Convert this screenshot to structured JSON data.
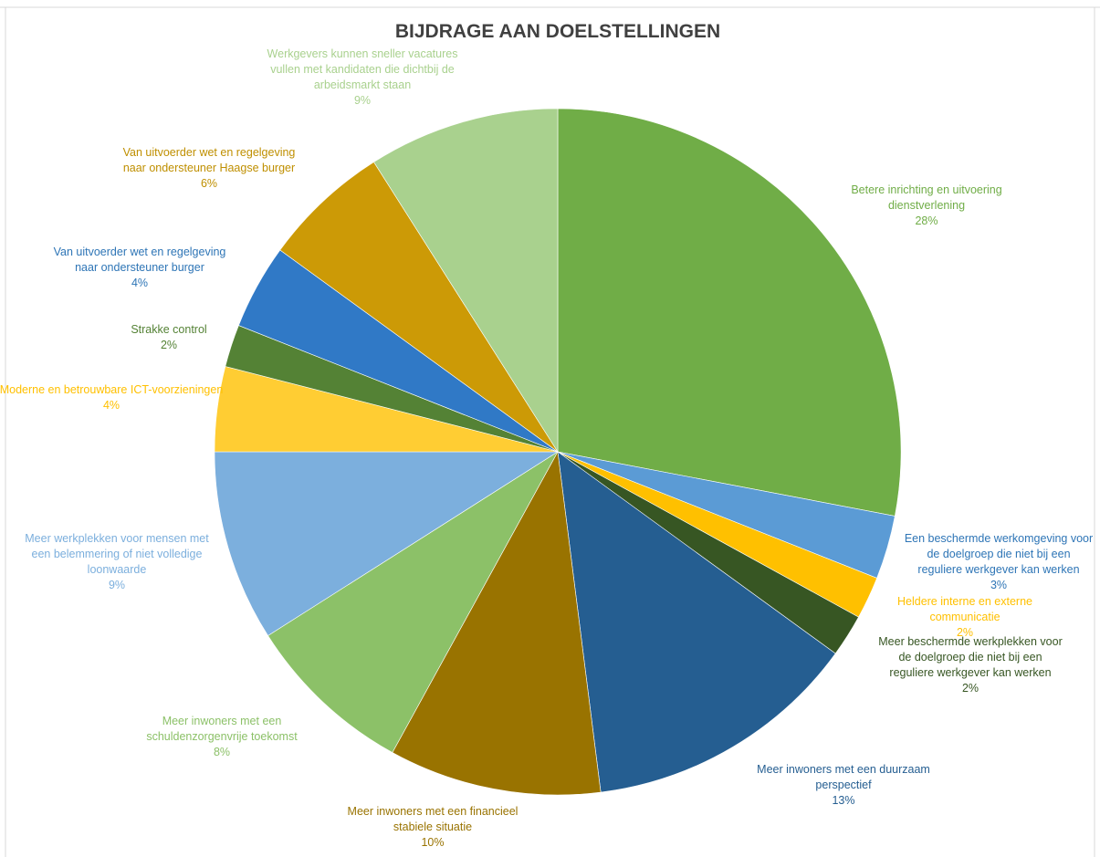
{
  "chart_data": {
    "type": "pie",
    "title": "BIJDRAGE AAN DOELSTELLINGEN",
    "slices": [
      {
        "label": "Betere inrichting en uitvoering dienstverlening",
        "value": 28,
        "pct_label": "28%",
        "color": "#70ad47",
        "label_color": "#70ad47"
      },
      {
        "label": "Een beschermde werkomgeving voor de doelgroep die niet bij een reguliere werkgever kan werken",
        "value": 3,
        "pct_label": "3%",
        "color": "#5b9bd5",
        "label_color": "#2e75b6"
      },
      {
        "label": "Heldere interne en externe communicatie",
        "value": 2,
        "pct_label": "2%",
        "color": "#ffc000",
        "label_color": "#ffc000"
      },
      {
        "label": "Meer beschermde werkplekken voor de doelgroep die niet bij een reguliere werkgever kan werken",
        "value": 2,
        "pct_label": "2%",
        "color": "#375623",
        "label_color": "#375623"
      },
      {
        "label": "Meer inwoners met een duurzaam perspectief",
        "value": 13,
        "pct_label": "13%",
        "color": "#255e91",
        "label_color": "#255e91"
      },
      {
        "label": "Meer inwoners met een financieel stabiele situatie",
        "value": 10,
        "pct_label": "10%",
        "color": "#997300",
        "label_color": "#997300"
      },
      {
        "label": "Meer inwoners met een schuldenzorgenvrije toekomst",
        "value": 8,
        "pct_label": "8%",
        "color": "#8cc168",
        "label_color": "#8cc168"
      },
      {
        "label": "Meer werkplekken voor mensen met een belemmering of niet volledige loonwaarde",
        "value": 9,
        "pct_label": "9%",
        "color": "#7cafdd",
        "label_color": "#7cafdd"
      },
      {
        "label": "Moderne en betrouwbare ICT-voorzieningen",
        "value": 4,
        "pct_label": "4%",
        "color": "#ffcd33",
        "label_color": "#ffc000"
      },
      {
        "label": "Strakke control",
        "value": 2,
        "pct_label": "2%",
        "color": "#548235",
        "label_color": "#548235"
      },
      {
        "label": "Van uitvoerder wet en regelgeving naar ondersteuner burger",
        "value": 4,
        "pct_label": "4%",
        "color": "#3079c6",
        "label_color": "#2e75b6"
      },
      {
        "label": "Van uitvoerder wet en regelgeving naar ondersteuner Haagse burger",
        "value": 6,
        "pct_label": "6%",
        "color": "#cc9a06",
        "label_color": "#bf8f00"
      },
      {
        "label": "Werkgevers kunnen sneller vacatures vullen met kandidaten die dichtbij de arbeidsmarkt staan",
        "value": 9,
        "pct_label": "9%",
        "color": "#a9d18e",
        "label_color": "#a9d18e"
      }
    ]
  }
}
